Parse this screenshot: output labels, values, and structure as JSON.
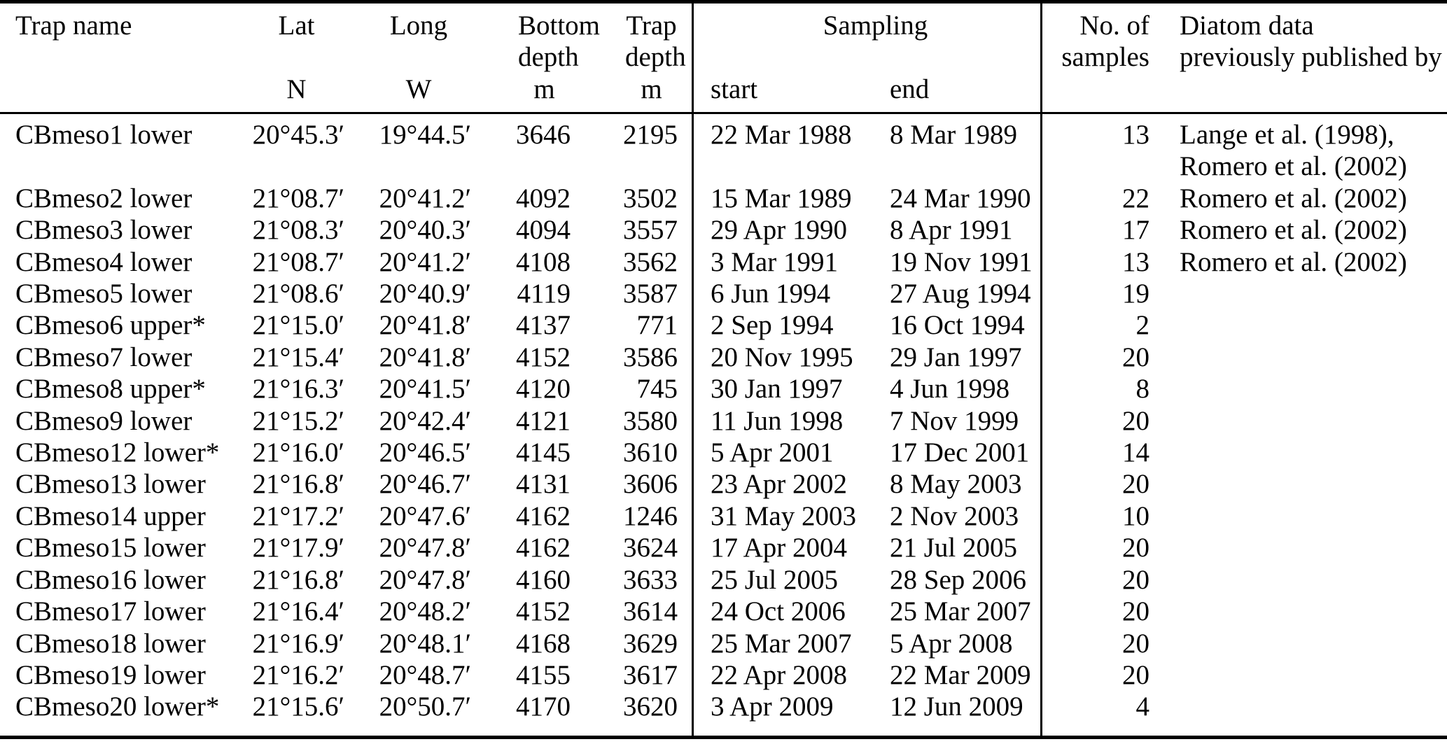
{
  "colors": {
    "text": "#000000",
    "background": "#ffffff",
    "rule": "#000000"
  },
  "table": {
    "header": {
      "trap_name": "Trap name",
      "lat": {
        "label": "Lat",
        "unit": "N"
      },
      "long": {
        "label": "Long",
        "unit": "W"
      },
      "bottom_depth": {
        "label": "Bottom",
        "label2": "depth",
        "unit": "m"
      },
      "trap_depth": {
        "label": "Trap",
        "label2": "depth",
        "unit": "m"
      },
      "sampling": {
        "label": "Sampling",
        "start": "start",
        "end": "end"
      },
      "samples": {
        "label": "No. of",
        "label2": "samples"
      },
      "published": {
        "label": "Diatom data",
        "label2": "previously published by"
      }
    },
    "columns": [
      "name",
      "lat",
      "long",
      "bottom_depth",
      "trap_depth",
      "start",
      "end",
      "samples",
      "published"
    ],
    "rows": [
      {
        "name": "CBmeso1 lower",
        "lat": "20°45.3′",
        "long": "19°44.5′",
        "bottom_depth": "3646",
        "trap_depth": "2195",
        "start": "22 Mar 1988",
        "end": "8 Mar 1989",
        "samples": "13",
        "published": "Lange et al. (1998),\nRomero et al. (2002)"
      },
      {
        "name": "CBmeso2 lower",
        "lat": "21°08.7′",
        "long": "20°41.2′",
        "bottom_depth": "4092",
        "trap_depth": "3502",
        "start": "15 Mar 1989",
        "end": "24 Mar 1990",
        "samples": "22",
        "published": "Romero et al. (2002)"
      },
      {
        "name": "CBmeso3 lower",
        "lat": "21°08.3′",
        "long": "20°40.3′",
        "bottom_depth": "4094",
        "trap_depth": "3557",
        "start": "29 Apr 1990",
        "end": "8 Apr 1991",
        "samples": "17",
        "published": "Romero et al. (2002)"
      },
      {
        "name": "CBmeso4 lower",
        "lat": "21°08.7′",
        "long": "20°41.2′",
        "bottom_depth": "4108",
        "trap_depth": "3562",
        "start": "3 Mar 1991",
        "end": "19 Nov 1991",
        "samples": "13",
        "published": "Romero et al. (2002)"
      },
      {
        "name": "CBmeso5 lower",
        "lat": "21°08.6′",
        "long": "20°40.9′",
        "bottom_depth": "4119",
        "trap_depth": "3587",
        "start": "6 Jun 1994",
        "end": "27 Aug 1994",
        "samples": "19",
        "published": ""
      },
      {
        "name": "CBmeso6 upper*",
        "lat": "21°15.0′",
        "long": "20°41.8′",
        "bottom_depth": "4137",
        "trap_depth": "771",
        "start": "2 Sep 1994",
        "end": "16 Oct 1994",
        "samples": "2",
        "published": ""
      },
      {
        "name": "CBmeso7 lower",
        "lat": "21°15.4′",
        "long": "20°41.8′",
        "bottom_depth": "4152",
        "trap_depth": "3586",
        "start": "20 Nov 1995",
        "end": "29 Jan 1997",
        "samples": "20",
        "published": ""
      },
      {
        "name": "CBmeso8 upper*",
        "lat": "21°16.3′",
        "long": "20°41.5′",
        "bottom_depth": "4120",
        "trap_depth": "745",
        "start": "30 Jan 1997",
        "end": "4 Jun 1998",
        "samples": "8",
        "published": ""
      },
      {
        "name": "CBmeso9 lower",
        "lat": "21°15.2′",
        "long": "20°42.4′",
        "bottom_depth": "4121",
        "trap_depth": "3580",
        "start": "11 Jun 1998",
        "end": "7 Nov 1999",
        "samples": "20",
        "published": ""
      },
      {
        "name": "CBmeso12 lower*",
        "lat": "21°16.0′",
        "long": "20°46.5′",
        "bottom_depth": "4145",
        "trap_depth": "3610",
        "start": "5 Apr 2001",
        "end": "17 Dec 2001",
        "samples": "14",
        "published": ""
      },
      {
        "name": "CBmeso13 lower",
        "lat": "21°16.8′",
        "long": "20°46.7′",
        "bottom_depth": "4131",
        "trap_depth": "3606",
        "start": "23 Apr 2002",
        "end": "8 May 2003",
        "samples": "20",
        "published": ""
      },
      {
        "name": "CBmeso14 upper",
        "lat": "21°17.2′",
        "long": "20°47.6′",
        "bottom_depth": "4162",
        "trap_depth": "1246",
        "start": "31 May 2003",
        "end": "2 Nov 2003",
        "samples": "10",
        "published": ""
      },
      {
        "name": "CBmeso15 lower",
        "lat": "21°17.9′",
        "long": "20°47.8′",
        "bottom_depth": "4162",
        "trap_depth": "3624",
        "start": "17 Apr 2004",
        "end": "21 Jul 2005",
        "samples": "20",
        "published": ""
      },
      {
        "name": "CBmeso16 lower",
        "lat": "21°16.8′",
        "long": "20°47.8′",
        "bottom_depth": "4160",
        "trap_depth": "3633",
        "start": "25 Jul 2005",
        "end": "28 Sep 2006",
        "samples": "20",
        "published": ""
      },
      {
        "name": "CBmeso17 lower",
        "lat": "21°16.4′",
        "long": "20°48.2′",
        "bottom_depth": "4152",
        "trap_depth": "3614",
        "start": "24 Oct 2006",
        "end": "25 Mar 2007",
        "samples": "20",
        "published": ""
      },
      {
        "name": "CBmeso18 lower",
        "lat": "21°16.9′",
        "long": "20°48.1′",
        "bottom_depth": "4168",
        "trap_depth": "3629",
        "start": "25 Mar 2007",
        "end": "5 Apr 2008",
        "samples": "20",
        "published": ""
      },
      {
        "name": "CBmeso19 lower",
        "lat": "21°16.2′",
        "long": "20°48.7′",
        "bottom_depth": "4155",
        "trap_depth": "3617",
        "start": "22 Apr 2008",
        "end": "22 Mar 2009",
        "samples": "20",
        "published": ""
      },
      {
        "name": "CBmeso20 lower*",
        "lat": "21°15.6′",
        "long": "20°50.7′",
        "bottom_depth": "4170",
        "trap_depth": "3620",
        "start": "3 Apr 2009",
        "end": "12 Jun 2009",
        "samples": "4",
        "published": ""
      }
    ]
  }
}
